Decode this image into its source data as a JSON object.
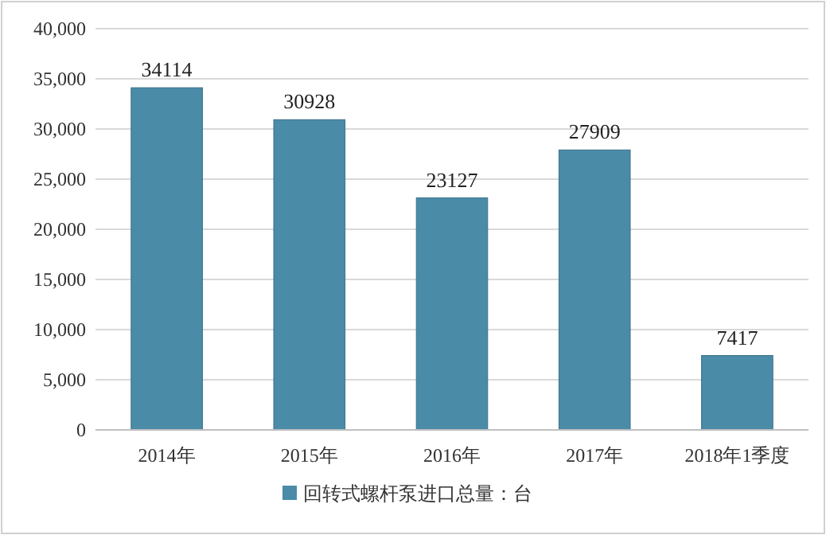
{
  "chart_data": {
    "type": "bar",
    "categories": [
      "2014年",
      "2015年",
      "2016年",
      "2017年",
      "2018年1季度"
    ],
    "series": [
      {
        "name": "回转式螺杆泵进口总量：台",
        "color": "#4a8ba8",
        "values": [
          34114,
          30928,
          23127,
          27909,
          7417
        ]
      }
    ],
    "ylim": [
      0,
      40000
    ],
    "yticks": [
      {
        "value": 0,
        "label": "0"
      },
      {
        "value": 5000,
        "label": "5,000"
      },
      {
        "value": 10000,
        "label": "10,000"
      },
      {
        "value": 15000,
        "label": "15,000"
      },
      {
        "value": 20000,
        "label": "20,000"
      },
      {
        "value": 25000,
        "label": "25,000"
      },
      {
        "value": 30000,
        "label": "30,000"
      },
      {
        "value": 35000,
        "label": "35,000"
      },
      {
        "value": 40000,
        "label": "40,000"
      }
    ],
    "grid": "y",
    "legend": "bottom",
    "data_labels": true
  }
}
